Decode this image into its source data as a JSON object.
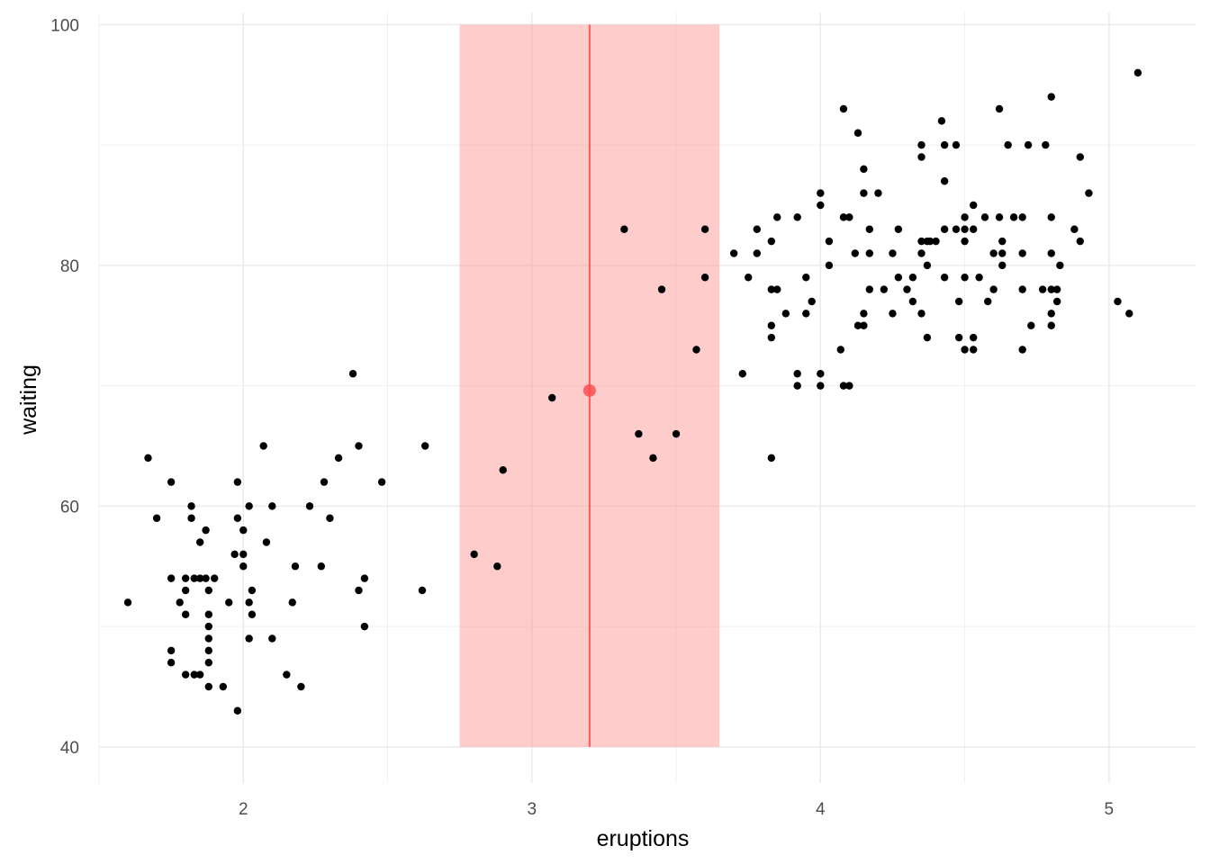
{
  "chart_data": {
    "type": "scatter",
    "title": "",
    "xlabel": "eruptions",
    "ylabel": "waiting",
    "xlim": [
      1.5,
      5.3
    ],
    "ylim": [
      37,
      101
    ],
    "x_ticks": [
      2,
      3,
      4,
      5
    ],
    "x_tick_labels": [
      "2",
      "3",
      "4",
      "5"
    ],
    "y_ticks": [
      40,
      60,
      80,
      100
    ],
    "y_tick_labels": [
      "40",
      "60",
      "80",
      "100"
    ],
    "x_minor_ticks": [
      1.5,
      2.5,
      3.5,
      4.5
    ],
    "y_minor_ticks": [
      50,
      70,
      90
    ],
    "grid": true,
    "legend": "none",
    "highlight_band": {
      "x_min": 2.75,
      "x_max": 3.65,
      "y_min": 40,
      "y_max": 100,
      "color": "#ff8f8f",
      "opacity": 0.45
    },
    "highlight_line": {
      "x": 3.2,
      "color": "#ff5a5a"
    },
    "highlight_point": {
      "x": 3.2,
      "y": 69.6,
      "color": "#ff4d4d"
    },
    "point_color": "#000000",
    "points": [
      [
        1.6,
        52
      ],
      [
        1.67,
        64
      ],
      [
        1.7,
        59
      ],
      [
        1.75,
        62
      ],
      [
        1.75,
        54
      ],
      [
        1.75,
        48
      ],
      [
        1.75,
        47
      ],
      [
        1.78,
        52
      ],
      [
        1.8,
        46
      ],
      [
        1.8,
        54
      ],
      [
        1.8,
        53
      ],
      [
        1.8,
        51
      ],
      [
        1.82,
        60
      ],
      [
        1.82,
        59
      ],
      [
        1.83,
        54
      ],
      [
        1.83,
        46
      ],
      [
        1.85,
        57
      ],
      [
        1.85,
        54
      ],
      [
        1.85,
        46
      ],
      [
        1.87,
        58
      ],
      [
        1.87,
        54
      ],
      [
        1.88,
        53
      ],
      [
        1.88,
        51
      ],
      [
        1.88,
        50
      ],
      [
        1.88,
        49
      ],
      [
        1.88,
        48
      ],
      [
        1.88,
        47
      ],
      [
        1.88,
        45
      ],
      [
        1.9,
        54
      ],
      [
        1.93,
        45
      ],
      [
        1.95,
        52
      ],
      [
        1.97,
        56
      ],
      [
        1.98,
        62
      ],
      [
        1.98,
        59
      ],
      [
        1.98,
        43
      ],
      [
        2.0,
        58
      ],
      [
        2.0,
        56
      ],
      [
        2.0,
        55
      ],
      [
        2.02,
        60
      ],
      [
        2.02,
        52
      ],
      [
        2.02,
        49
      ],
      [
        2.03,
        53
      ],
      [
        2.03,
        51
      ],
      [
        2.07,
        65
      ],
      [
        2.08,
        57
      ],
      [
        2.1,
        60
      ],
      [
        2.1,
        49
      ],
      [
        2.15,
        46
      ],
      [
        2.17,
        52
      ],
      [
        2.18,
        55
      ],
      [
        2.2,
        45
      ],
      [
        2.23,
        60
      ],
      [
        2.27,
        55
      ],
      [
        2.28,
        62
      ],
      [
        2.3,
        59
      ],
      [
        2.33,
        64
      ],
      [
        2.38,
        71
      ],
      [
        2.4,
        65
      ],
      [
        2.4,
        53
      ],
      [
        2.42,
        54
      ],
      [
        2.42,
        50
      ],
      [
        2.48,
        62
      ],
      [
        2.62,
        53
      ],
      [
        2.63,
        65
      ],
      [
        2.8,
        56
      ],
      [
        2.88,
        55
      ],
      [
        2.9,
        63
      ],
      [
        3.07,
        69
      ],
      [
        3.32,
        83
      ],
      [
        3.37,
        66
      ],
      [
        3.42,
        64
      ],
      [
        3.45,
        78
      ],
      [
        3.5,
        66
      ],
      [
        3.57,
        73
      ],
      [
        3.6,
        83
      ],
      [
        3.6,
        79
      ],
      [
        3.7,
        81
      ],
      [
        3.73,
        71
      ],
      [
        3.75,
        79
      ],
      [
        3.78,
        83
      ],
      [
        3.78,
        81
      ],
      [
        3.83,
        82
      ],
      [
        3.83,
        78
      ],
      [
        3.83,
        75
      ],
      [
        3.83,
        74
      ],
      [
        3.83,
        64
      ],
      [
        3.85,
        84
      ],
      [
        3.85,
        78
      ],
      [
        3.88,
        76
      ],
      [
        3.92,
        84
      ],
      [
        3.92,
        71
      ],
      [
        3.92,
        70
      ],
      [
        3.95,
        79
      ],
      [
        3.95,
        76
      ],
      [
        3.97,
        77
      ],
      [
        4.0,
        86
      ],
      [
        4.0,
        85
      ],
      [
        4.0,
        71
      ],
      [
        4.0,
        70
      ],
      [
        4.03,
        82
      ],
      [
        4.03,
        80
      ],
      [
        4.07,
        73
      ],
      [
        4.08,
        93
      ],
      [
        4.08,
        84
      ],
      [
        4.08,
        70
      ],
      [
        4.1,
        84
      ],
      [
        4.1,
        70
      ],
      [
        4.12,
        81
      ],
      [
        4.13,
        91
      ],
      [
        4.13,
        75
      ],
      [
        4.15,
        88
      ],
      [
        4.15,
        86
      ],
      [
        4.15,
        76
      ],
      [
        4.15,
        75
      ],
      [
        4.17,
        83
      ],
      [
        4.17,
        81
      ],
      [
        4.17,
        78
      ],
      [
        4.2,
        86
      ],
      [
        4.22,
        78
      ],
      [
        4.25,
        81
      ],
      [
        4.25,
        76
      ],
      [
        4.27,
        83
      ],
      [
        4.27,
        79
      ],
      [
        4.3,
        78
      ],
      [
        4.32,
        79
      ],
      [
        4.32,
        77
      ],
      [
        4.35,
        90
      ],
      [
        4.35,
        89
      ],
      [
        4.35,
        82
      ],
      [
        4.35,
        81
      ],
      [
        4.35,
        76
      ],
      [
        4.37,
        82
      ],
      [
        4.37,
        80
      ],
      [
        4.37,
        74
      ],
      [
        4.38,
        82
      ],
      [
        4.4,
        82
      ],
      [
        4.42,
        92
      ],
      [
        4.43,
        90
      ],
      [
        4.43,
        87
      ],
      [
        4.43,
        83
      ],
      [
        4.43,
        79
      ],
      [
        4.47,
        90
      ],
      [
        4.47,
        83
      ],
      [
        4.48,
        77
      ],
      [
        4.48,
        74
      ],
      [
        4.5,
        84
      ],
      [
        4.5,
        83
      ],
      [
        4.5,
        82
      ],
      [
        4.5,
        79
      ],
      [
        4.5,
        73
      ],
      [
        4.53,
        85
      ],
      [
        4.53,
        83
      ],
      [
        4.53,
        74
      ],
      [
        4.53,
        73
      ],
      [
        4.55,
        79
      ],
      [
        4.57,
        84
      ],
      [
        4.58,
        77
      ],
      [
        4.6,
        81
      ],
      [
        4.6,
        78
      ],
      [
        4.62,
        93
      ],
      [
        4.62,
        84
      ],
      [
        4.63,
        82
      ],
      [
        4.63,
        81
      ],
      [
        4.63,
        80
      ],
      [
        4.65,
        90
      ],
      [
        4.67,
        84
      ],
      [
        4.7,
        84
      ],
      [
        4.7,
        81
      ],
      [
        4.7,
        78
      ],
      [
        4.7,
        73
      ],
      [
        4.72,
        90
      ],
      [
        4.73,
        75
      ],
      [
        4.77,
        78
      ],
      [
        4.78,
        90
      ],
      [
        4.8,
        94
      ],
      [
        4.8,
        84
      ],
      [
        4.8,
        81
      ],
      [
        4.8,
        78
      ],
      [
        4.8,
        76
      ],
      [
        4.8,
        75
      ],
      [
        4.82,
        78
      ],
      [
        4.82,
        77
      ],
      [
        4.83,
        80
      ],
      [
        4.88,
        83
      ],
      [
        4.9,
        89
      ],
      [
        4.9,
        82
      ],
      [
        4.93,
        86
      ],
      [
        5.03,
        77
      ],
      [
        5.07,
        76
      ],
      [
        5.1,
        96
      ]
    ]
  }
}
